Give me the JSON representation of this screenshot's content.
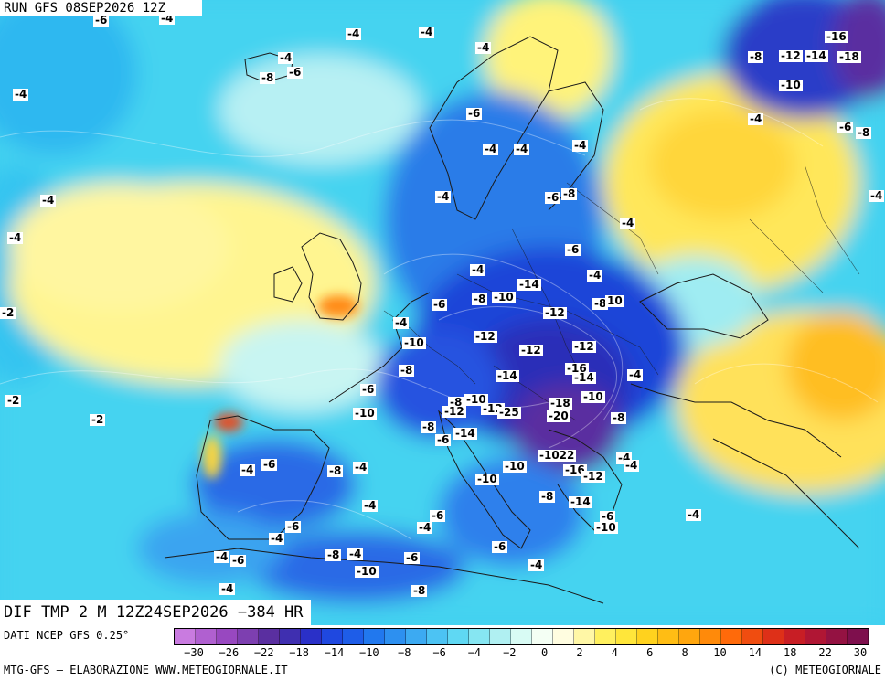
{
  "map": {
    "run_label": "RUN GFS 08SEP2026 12Z",
    "title": "DIF TMP 2 M 12Z24SEP2026 −384 HR",
    "source": "DATI NCEP GFS 0.25°",
    "credit_left": "MTG-GFS — ELABORAZIONE WWW.METEOGIORNALE.IT",
    "credit_right": "(C) METEOGIORNALE",
    "colors": {
      "ocean_base": "#3fd0f0",
      "land_warm": "#fff37a",
      "land_cold": "#1e5de0",
      "coast": "#1a1a1a"
    },
    "scale": {
      "ticks": [
        "−30",
        "−26",
        "−22",
        "−18",
        "−14",
        "−10",
        "−8",
        "−6",
        "−4",
        "−2",
        "0",
        "2",
        "4",
        "6",
        "8",
        "10",
        "14",
        "18",
        "22",
        "30"
      ],
      "colors": [
        "#c97be0",
        "#b060d0",
        "#9848c0",
        "#7d3fb0",
        "#5a2fa0",
        "#3f2fb0",
        "#2a30c8",
        "#1f48e0",
        "#1e5de8",
        "#2178ee",
        "#2d90f0",
        "#3caaf2",
        "#4cc3f3",
        "#5fd8f3",
        "#86e6f2",
        "#b0f0f2",
        "#d8fbf4",
        "#f4fff4",
        "#fffde0",
        "#fff7a6",
        "#fff05e",
        "#ffe63a",
        "#ffd21e",
        "#ffbd14",
        "#ffa60e",
        "#ff8a0a",
        "#ff6a0a",
        "#f04d10",
        "#de3018",
        "#c81e25",
        "#b01634",
        "#941242",
        "#7e0f4d"
      ]
    },
    "labels": [
      "-6",
      "-4",
      "-4",
      "-4",
      "-4",
      "-8",
      "-6",
      "-8",
      "-4",
      "-16",
      "-12",
      "-14",
      "-18",
      "-4",
      "-10",
      "-6",
      "-4",
      "-6",
      "-8",
      "-4",
      "-4",
      "-4",
      "-6",
      "-8",
      "-4",
      "-4",
      "-4",
      "-4",
      "-6",
      "-4",
      "-4",
      "-4",
      "-14",
      "-8",
      "-10",
      "-8",
      "10",
      "-6",
      "-12",
      "-4",
      "-10",
      "-12",
      "-12",
      "-12",
      "-8",
      "-14",
      "-16",
      "-14",
      "-4",
      "-6",
      "-10",
      "-10",
      "-8",
      "-10",
      "-12",
      "-12",
      "-18",
      "-2",
      "-2",
      "-20",
      "-8",
      "-8",
      "-14",
      "-6",
      "-1022",
      "-4",
      "-4",
      "-6",
      "-8",
      "-4",
      "-10",
      "-16",
      "-12",
      "-4",
      "-8",
      "-14",
      "-4",
      "-6",
      "-6",
      "-4",
      "-10",
      "-4",
      "-6",
      "-8",
      "-4",
      "-6",
      "-4",
      "-10",
      "-4",
      "-8",
      "-6",
      "-4",
      "-2",
      "-25",
      "-6",
      "-4",
      "-10"
    ]
  }
}
